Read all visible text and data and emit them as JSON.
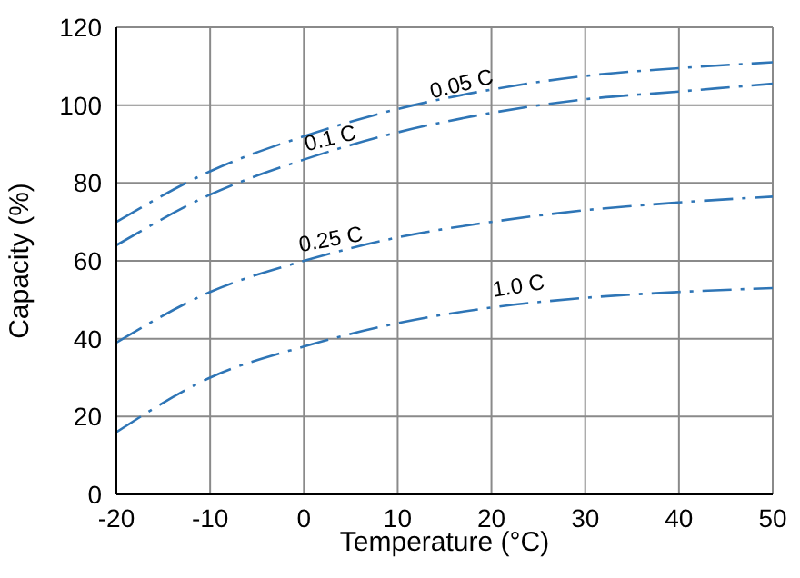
{
  "chart_data": {
    "type": "line",
    "xlabel": "Temperature (°C)",
    "ylabel": "Capacity (%)",
    "x": [
      -20,
      -10,
      0,
      10,
      20,
      30,
      40,
      50
    ],
    "series": [
      {
        "name": "0.05 C",
        "color": "#2e75b6",
        "values": [
          70,
          83,
          92,
          99,
          104,
          107.5,
          109.5,
          111
        ]
      },
      {
        "name": "0.1 C",
        "color": "#2e75b6",
        "values": [
          64,
          77,
          86,
          93,
          98,
          101.5,
          103.5,
          105.5
        ]
      },
      {
        "name": "0.25 C",
        "color": "#2e75b6",
        "values": [
          39,
          52,
          60,
          66,
          70,
          73,
          75,
          76.5
        ]
      },
      {
        "name": "1.0 C",
        "color": "#2e75b6",
        "values": [
          16,
          30,
          38,
          44,
          48,
          50.5,
          52,
          53
        ]
      }
    ],
    "xlim": [
      -20,
      50
    ],
    "xticks": [
      -20,
      -10,
      0,
      10,
      20,
      30,
      40,
      50
    ],
    "ylim": [
      0,
      120
    ],
    "yticks": [
      0,
      20,
      40,
      60,
      80,
      100,
      120
    ],
    "grid": true,
    "legend": false,
    "marker": "none",
    "line_style": "dashdot"
  }
}
